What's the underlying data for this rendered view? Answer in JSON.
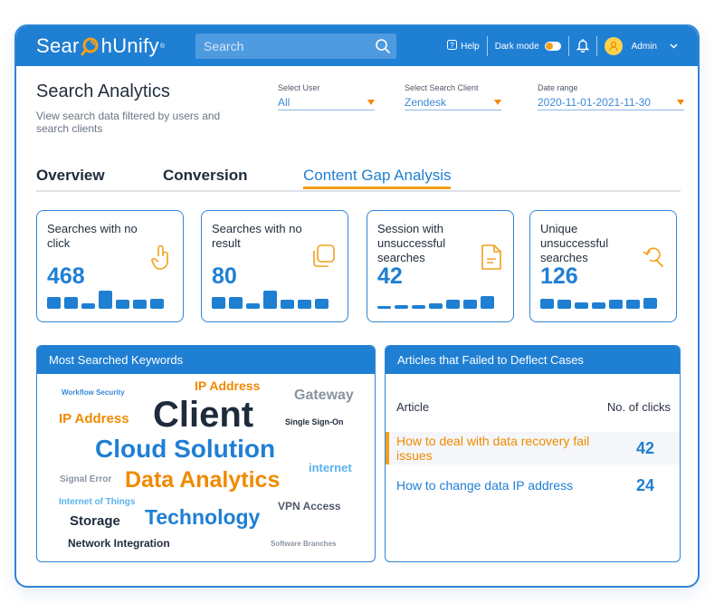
{
  "app": {
    "logo_text_left": "Sear",
    "logo_text_right": "hUnify",
    "logo_mark": "®"
  },
  "topbar": {
    "search_placeholder": "Search",
    "help_label": "Help",
    "dark_mode_label": "Dark mode",
    "user_name": "Admin"
  },
  "header": {
    "title": "Search Analytics",
    "subtitle": "View search data filtered by users and search clients"
  },
  "filters": {
    "user": {
      "label": "Select User",
      "value": "All"
    },
    "client": {
      "label": "Select Search Client",
      "value": "Zendesk"
    },
    "date": {
      "label": "Date range",
      "value": "2020-11-01-2021-11-30"
    }
  },
  "tabs": [
    {
      "label": "Overview"
    },
    {
      "label": "Conversion"
    },
    {
      "label": "Content Gap Analysis",
      "active": true
    }
  ],
  "cards": [
    {
      "title": "Searches with no click",
      "value": "468",
      "icon": "touch-icon",
      "bars": [
        0.6,
        0.6,
        0.25,
        0.9,
        0.45,
        0.45,
        0.5
      ]
    },
    {
      "title": "Searches with no result",
      "value": "80",
      "icon": "copy-icon",
      "bars": [
        0.6,
        0.6,
        0.25,
        0.9,
        0.45,
        0.45,
        0.5
      ]
    },
    {
      "title": "Session with unsuccessful searches",
      "value": "42",
      "icon": "document-icon",
      "bars": [
        0.1,
        0.2,
        0.2,
        0.25,
        0.45,
        0.45,
        0.65
      ]
    },
    {
      "title": "Unique unsuccessful searches",
      "value": "126",
      "icon": "search-refresh-icon",
      "bars": [
        0.5,
        0.45,
        0.3,
        0.3,
        0.45,
        0.45,
        0.55
      ]
    }
  ],
  "keywords_panel": {
    "title": "Most Searched Keywords",
    "words": [
      {
        "text": "Workflow Security",
        "color": "#3a8ad8",
        "size": 8
      },
      {
        "text": "IP Address",
        "color": "#f08a00",
        "size": 14
      },
      {
        "text": "Gateway",
        "color": "#8a949f",
        "size": 16
      },
      {
        "text": "IP Address",
        "color": "#f08a00",
        "size": 15
      },
      {
        "text": "Client",
        "color": "#1e2b3c",
        "size": 40
      },
      {
        "text": "Single Sign-On",
        "color": "#1e2b3c",
        "size": 9
      },
      {
        "text": "Cloud Solution",
        "color": "#1f7fd3",
        "size": 28
      },
      {
        "text": "internet",
        "color": "#5ab2ee",
        "size": 13
      },
      {
        "text": "Signal Error",
        "color": "#8a949f",
        "size": 10
      },
      {
        "text": "Data Analytics",
        "color": "#f08a00",
        "size": 25
      },
      {
        "text": "Internet of Things",
        "color": "#5ab2ee",
        "size": 10
      },
      {
        "text": "VPN Access",
        "color": "#4e5968",
        "size": 12
      },
      {
        "text": "Storage",
        "color": "#1e2b3c",
        "size": 15
      },
      {
        "text": "Technology",
        "color": "#1f7fd3",
        "size": 23
      },
      {
        "text": "Network Integration",
        "color": "#1e2b3c",
        "size": 12
      },
      {
        "text": "Software Branches",
        "color": "#8a949f",
        "size": 8
      }
    ]
  },
  "articles_panel": {
    "title": "Articles that Failed to Deflect Cases",
    "col_article": "Article",
    "col_clicks": "No. of clicks",
    "rows": [
      {
        "title": "How to deal with data recovery fail issues",
        "clicks": "42",
        "color": "#f08a00"
      },
      {
        "title": "How to change data IP address",
        "clicks": "24",
        "color": "#1f7fd3"
      }
    ]
  }
}
